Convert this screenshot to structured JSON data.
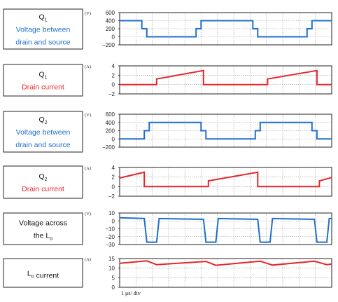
{
  "colors": {
    "voltage": "#1f6fce",
    "current": "#e8262a",
    "grid": "#8a8a8a",
    "frame": "#222222",
    "label_blue": "#1f6fce",
    "label_red": "#e8262a",
    "label_black": "#111111"
  },
  "footer": "1 μs/ div",
  "chart_data": [
    {
      "type": "line",
      "label_lines": [
        {
          "parts": [
            {
              "t": "Q"
            },
            {
              "t": "1",
              "sub": true
            }
          ],
          "color": "black"
        },
        {
          "parts": [
            {
              "t": "Voltage between"
            }
          ],
          "color": "blue"
        },
        {
          "parts": [
            {
              "t": "drain and source"
            }
          ],
          "color": "blue"
        }
      ],
      "unit": "(V)",
      "yticks": [
        "600",
        "400",
        "200",
        "0",
        "−200"
      ],
      "tickvals": [
        600,
        400,
        200,
        0,
        -200
      ],
      "ylim": [
        -200,
        600
      ],
      "series": [
        {
          "color": "voltage",
          "x": [
            0,
            0.9,
            0.9,
            1.1,
            1.1,
            3.1,
            3.1,
            3.3,
            3.3,
            5.4,
            5.4,
            5.6,
            5.6,
            7.6,
            7.6,
            7.8,
            7.8,
            8.6
          ],
          "y": [
            400,
            400,
            200,
            200,
            0,
            0,
            200,
            200,
            400,
            400,
            200,
            200,
            0,
            0,
            200,
            200,
            400,
            400
          ]
        }
      ]
    },
    {
      "type": "line",
      "label_lines": [
        {
          "parts": [
            {
              "t": "Q"
            },
            {
              "t": "1",
              "sub": true
            }
          ],
          "color": "black"
        },
        {
          "parts": [
            {
              "t": "Drain current"
            }
          ],
          "color": "red"
        }
      ],
      "unit": "(A)",
      "yticks": [
        "4",
        "2",
        "0",
        "−2"
      ],
      "tickvals": [
        4,
        2,
        0,
        -2
      ],
      "ylim": [
        -2,
        4
      ],
      "series": [
        {
          "color": "current",
          "x": [
            0,
            1.5,
            1.5,
            3.4,
            3.4,
            3.6,
            3.6,
            6.0,
            6.0,
            8.0,
            8.0,
            8.2,
            8.2,
            8.6
          ],
          "y": [
            0,
            0,
            1.2,
            3.0,
            0,
            0,
            0,
            0,
            1.2,
            3.0,
            0,
            0,
            0,
            0
          ]
        }
      ]
    },
    {
      "type": "line",
      "label_lines": [
        {
          "parts": [
            {
              "t": "Q"
            },
            {
              "t": "2",
              "sub": true
            }
          ],
          "color": "black"
        },
        {
          "parts": [
            {
              "t": "Voltage between"
            }
          ],
          "color": "blue"
        },
        {
          "parts": [
            {
              "t": "drain and source"
            }
          ],
          "color": "blue"
        }
      ],
      "unit": "(V)",
      "yticks": [
        "600",
        "400",
        "200",
        "0",
        "−200"
      ],
      "tickvals": [
        600,
        400,
        200,
        0,
        -200
      ],
      "ylim": [
        -200,
        600
      ],
      "series": [
        {
          "color": "voltage",
          "x": [
            0,
            1.0,
            1.0,
            1.2,
            1.2,
            3.3,
            3.3,
            3.5,
            3.5,
            5.5,
            5.5,
            5.7,
            5.7,
            7.8,
            7.8,
            8.0,
            8.0,
            8.6
          ],
          "y": [
            0,
            0,
            200,
            200,
            400,
            400,
            200,
            200,
            0,
            0,
            200,
            200,
            400,
            400,
            200,
            200,
            0,
            0
          ]
        }
      ]
    },
    {
      "type": "line",
      "label_lines": [
        {
          "parts": [
            {
              "t": "Q"
            },
            {
              "t": "2",
              "sub": true
            }
          ],
          "color": "black"
        },
        {
          "parts": [
            {
              "t": "Drain current"
            }
          ],
          "color": "red"
        }
      ],
      "unit": "(A)",
      "yticks": [
        "4",
        "2",
        "0",
        "−2"
      ],
      "tickvals": [
        4,
        2,
        0,
        -2
      ],
      "ylim": [
        -2,
        4
      ],
      "series": [
        {
          "color": "current",
          "x": [
            0,
            1.0,
            1.0,
            1.2,
            1.2,
            3.6,
            3.6,
            5.6,
            5.6,
            5.8,
            5.8,
            8.1,
            8.1,
            8.6
          ],
          "y": [
            1.8,
            3.0,
            0,
            0,
            0,
            0,
            1.2,
            3.0,
            0,
            0,
            0,
            0,
            1.2,
            1.9
          ]
        }
      ]
    },
    {
      "type": "line",
      "label_lines": [
        {
          "parts": [
            {
              "t": "Voltage across"
            }
          ],
          "color": "black"
        },
        {
          "parts": [
            {
              "t": "the L"
            },
            {
              "t": "o",
              "sub": true
            }
          ],
          "color": "black"
        }
      ],
      "unit": "(V)",
      "yticks": [
        "10",
        "0",
        "−10",
        "−20",
        "−30"
      ],
      "tickvals": [
        10,
        0,
        -10,
        -20,
        -30
      ],
      "ylim": [
        -30,
        10
      ],
      "series": [
        {
          "color": "voltage",
          "x": [
            0,
            1.0,
            1.0,
            1.1,
            1.1,
            1.5,
            1.5,
            1.6,
            1.6,
            3.4,
            3.4,
            3.5,
            3.5,
            3.9,
            3.9,
            4.0,
            4.0,
            5.6,
            5.6,
            5.7,
            5.7,
            6.1,
            6.1,
            6.2,
            6.2,
            7.9,
            7.9,
            8.0,
            8.0,
            8.4,
            8.4,
            8.5,
            8.5,
            8.6
          ],
          "y": [
            4,
            3,
            3,
            -27,
            -27,
            -27,
            -27,
            3,
            3,
            2,
            2,
            -27,
            -27,
            -27,
            -27,
            3,
            3,
            2,
            2,
            -27,
            -27,
            -27,
            -27,
            3,
            3,
            2,
            2,
            -27,
            -27,
            -27,
            -27,
            3,
            3,
            3
          ]
        }
      ]
    },
    {
      "type": "line",
      "label_lines": [
        {
          "parts": [
            {
              "t": "L"
            },
            {
              "t": "o",
              "sub": true
            },
            {
              "t": " current"
            }
          ],
          "color": "black"
        }
      ],
      "unit": "(A)",
      "yticks": [
        "15",
        "10",
        "5",
        "0"
      ],
      "tickvals": [
        15,
        10,
        5,
        0
      ],
      "ylim": [
        0,
        15
      ],
      "series": [
        {
          "color": "current",
          "x": [
            0,
            1.1,
            1.5,
            3.5,
            3.9,
            5.7,
            6.2,
            7.9,
            8.4,
            8.6
          ],
          "y": [
            12.5,
            13.8,
            11.8,
            13.5,
            11.5,
            13.6,
            11.6,
            13.6,
            11.8,
            12.2
          ]
        }
      ]
    }
  ]
}
